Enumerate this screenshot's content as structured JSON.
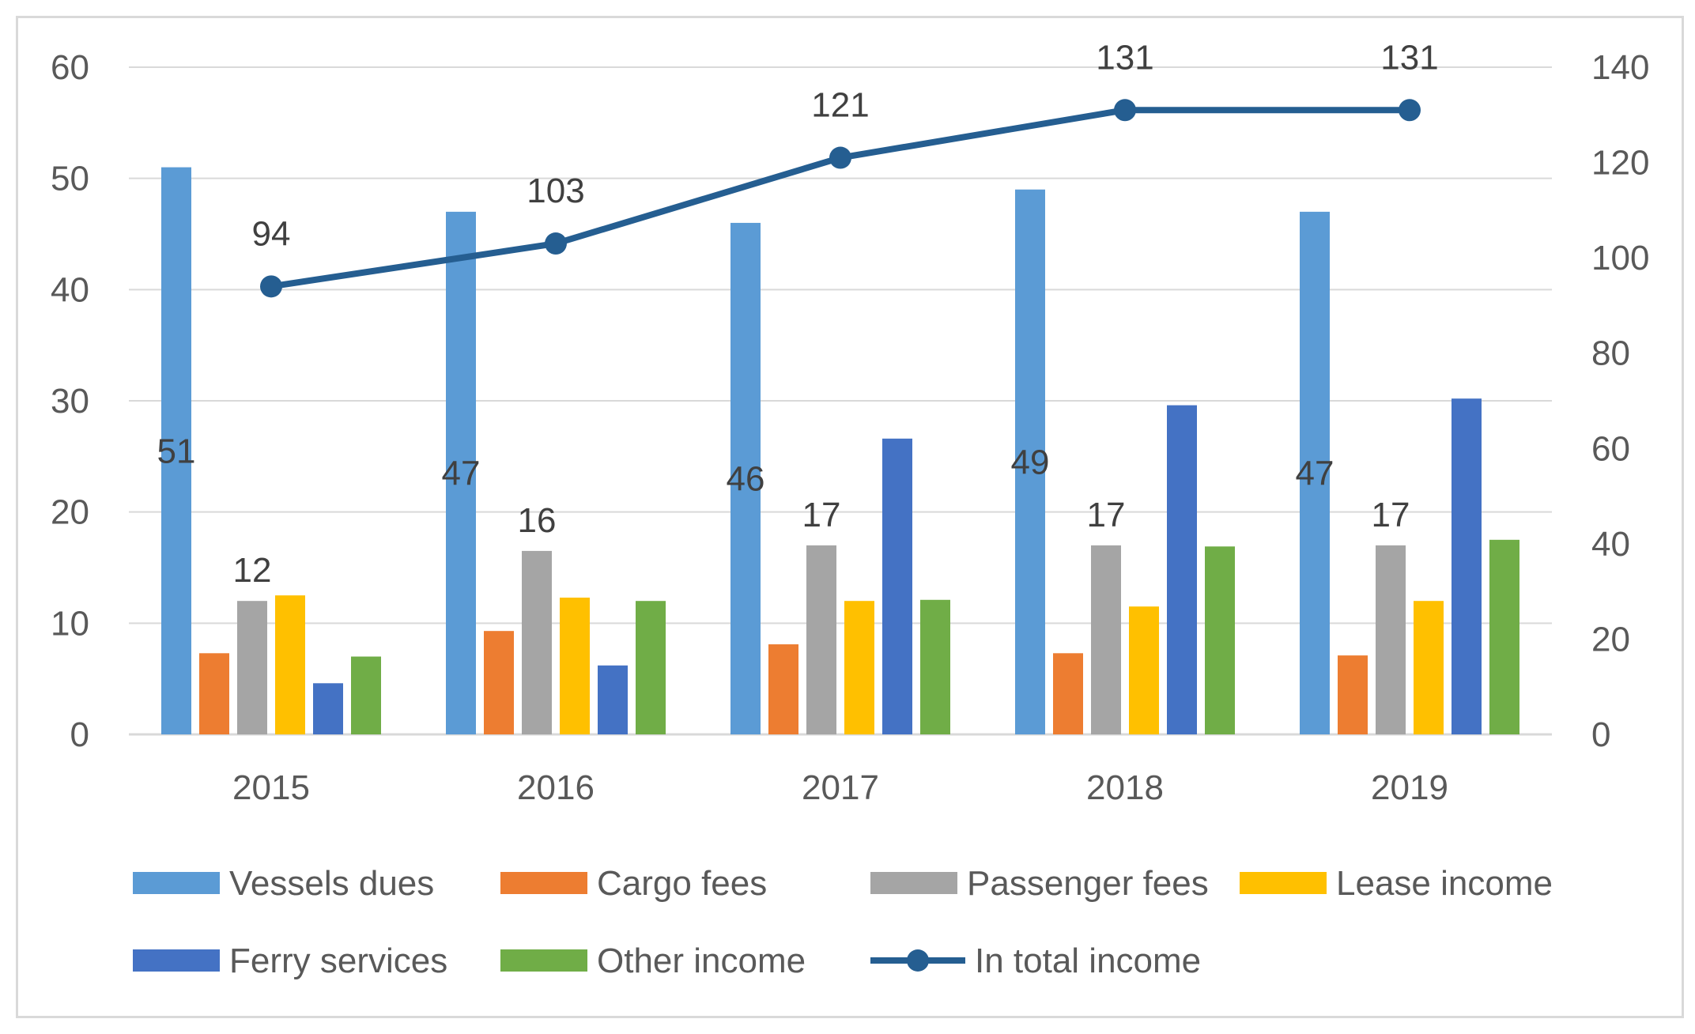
{
  "chart_data": {
    "type": "bar",
    "categories": [
      "2015",
      "2016",
      "2017",
      "2018",
      "2019"
    ],
    "ylim": [
      0,
      60
    ],
    "y_ticks": [
      0,
      10,
      20,
      30,
      40,
      50,
      60
    ],
    "y2lim": [
      0,
      140
    ],
    "y2_ticks": [
      0,
      20,
      40,
      60,
      80,
      100,
      120,
      140
    ],
    "grid": true,
    "legend_position": "bottom",
    "series": [
      {
        "name": "Vessels dues",
        "color": "#5b9bd5",
        "values": [
          51,
          47,
          46,
          49,
          47
        ],
        "labels": [
          "51",
          "47",
          "46",
          "49",
          "47"
        ]
      },
      {
        "name": "Cargo fees",
        "color": "#ed7d31",
        "values": [
          7.3,
          9.3,
          8.1,
          7.3,
          7.1
        ],
        "labels": []
      },
      {
        "name": "Passenger fees",
        "color": "#a5a5a5",
        "values": [
          12,
          16.5,
          17,
          17,
          17
        ],
        "labels": [
          "12",
          "16",
          "17",
          "17",
          "17"
        ]
      },
      {
        "name": "Lease income",
        "color": "#ffc000",
        "values": [
          12.5,
          12.3,
          12,
          11.5,
          12
        ],
        "labels": []
      },
      {
        "name": "Ferry services",
        "color": "#4472c4",
        "values": [
          4.6,
          6.2,
          26.6,
          29.6,
          30.2
        ],
        "labels": []
      },
      {
        "name": "Other income",
        "color": "#70ad47",
        "values": [
          7,
          12,
          12.1,
          16.9,
          17.5
        ],
        "labels": []
      }
    ],
    "line_series": {
      "name": "In total income",
      "color": "#255e91",
      "axis": "secondary",
      "values": [
        94,
        103,
        121,
        131,
        131
      ],
      "labels": [
        "94",
        "103",
        "121",
        "131",
        "131"
      ]
    }
  }
}
